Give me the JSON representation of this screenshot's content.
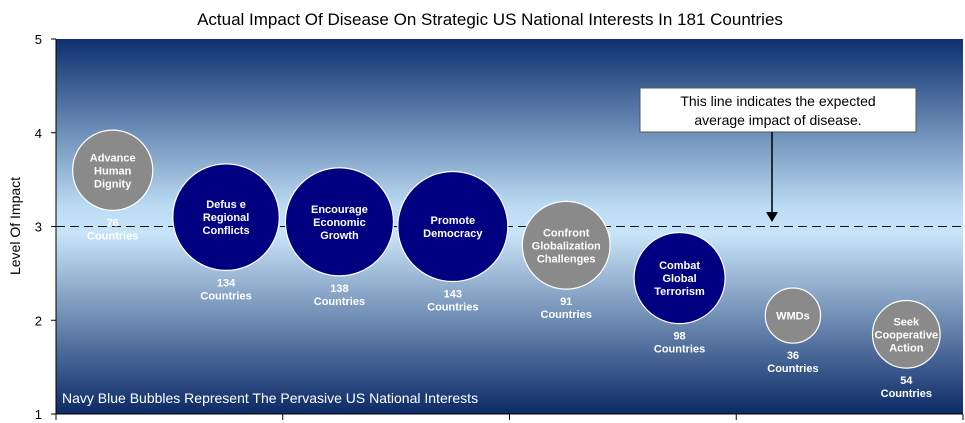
{
  "chart_data": {
    "type": "bubble",
    "title": "Actual Impact Of Disease On Strategic US National Interests In 181 Countries",
    "ylabel": "Level Of Impact",
    "ylim": [
      1,
      5
    ],
    "yticks": [
      "1",
      "2",
      "3",
      "4",
      "5"
    ],
    "x_categories": 8,
    "reference_line": {
      "y": 3,
      "style": "dashed"
    },
    "callout": {
      "lines": [
        "This line indicates the expected",
        "average impact of disease."
      ]
    },
    "footnote": "Navy Blue Bubbles Represent The Pervasive US National  Interests",
    "colors": {
      "pervasive": "#000080",
      "other": "#8a8a8a",
      "bg_top": "#0d2f6e",
      "bg_mid": "#b8d8f2",
      "bg_bottom": "#0d2f6e"
    },
    "bubbles": [
      {
        "name": [
          "Advance",
          "Human",
          "Dignity"
        ],
        "x": 1,
        "y": 3.6,
        "countries": 76,
        "count_label": [
          "76",
          "Countries"
        ],
        "pervasive": false
      },
      {
        "name": [
          "Defus e",
          "Regional",
          "Conflicts"
        ],
        "x": 2,
        "y": 3.1,
        "countries": 134,
        "count_label": [
          "134",
          "Countries"
        ],
        "pervasive": true
      },
      {
        "name": [
          "Encourage",
          "Economic",
          "Growth"
        ],
        "x": 3,
        "y": 3.05,
        "countries": 138,
        "count_label": [
          "138",
          "Countries"
        ],
        "pervasive": true
      },
      {
        "name": [
          "Promote",
          "Democracy"
        ],
        "x": 4,
        "y": 3.0,
        "countries": 143,
        "count_label": [
          "143",
          "Countries"
        ],
        "pervasive": true
      },
      {
        "name": [
          "Confront",
          "Globalization",
          "Challenges"
        ],
        "x": 5,
        "y": 2.8,
        "countries": 91,
        "count_label": [
          "91",
          "Countries"
        ],
        "pervasive": false
      },
      {
        "name": [
          "Combat",
          "Global",
          "Terrorism"
        ],
        "x": 6,
        "y": 2.45,
        "countries": 98,
        "count_label": [
          "98",
          "Countries"
        ],
        "pervasive": true
      },
      {
        "name": [
          "WMDs"
        ],
        "x": 7,
        "y": 2.05,
        "countries": 36,
        "count_label": [
          "36",
          "Countries"
        ],
        "pervasive": false
      },
      {
        "name": [
          "Seek",
          "Cooperative",
          "Action"
        ],
        "x": 8,
        "y": 1.85,
        "countries": 54,
        "count_label": [
          "54",
          "Countries"
        ],
        "pervasive": false
      }
    ]
  }
}
